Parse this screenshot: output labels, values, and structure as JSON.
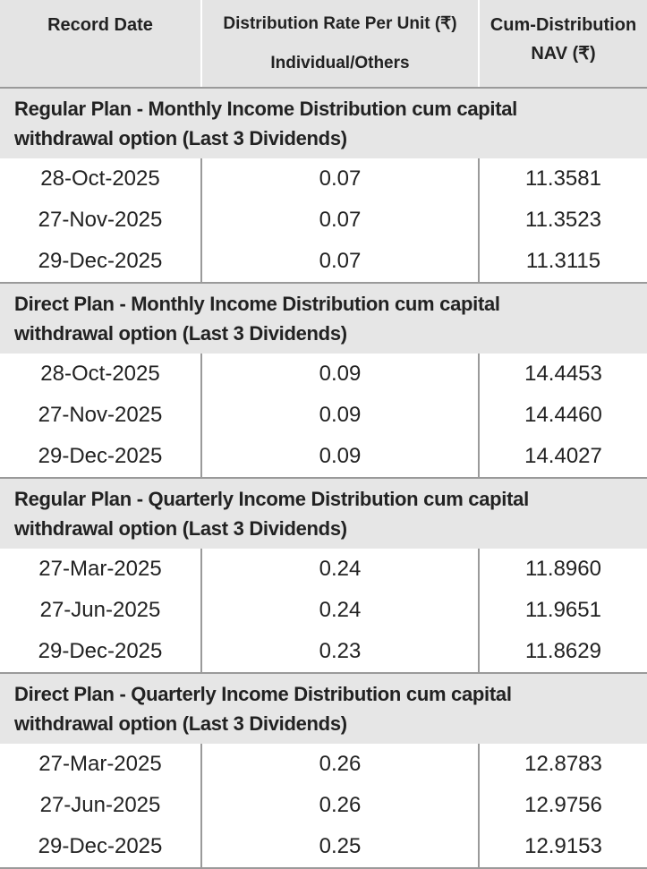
{
  "table": {
    "header": {
      "record_date": "Record Date",
      "rate": [
        "Distribution Rate Per Unit (₹)",
        "Individual/Others"
      ],
      "nav": [
        "Cum-Distribution",
        "NAV (₹)"
      ]
    },
    "sections": [
      {
        "title": [
          "Regular Plan - Monthly Income Distribution cum capital",
          "withdrawal option (Last 3 Dividends)"
        ],
        "rows": [
          [
            "28-Oct-2025",
            "0.07",
            "11.3581"
          ],
          [
            "27-Nov-2025",
            "0.07",
            "11.3523"
          ],
          [
            "29-Dec-2025",
            "0.07",
            "11.3115"
          ]
        ]
      },
      {
        "title": [
          "Direct Plan - Monthly Income Distribution cum capital",
          "withdrawal option (Last 3 Dividends)"
        ],
        "rows": [
          [
            "28-Oct-2025",
            "0.09",
            "14.4453"
          ],
          [
            "27-Nov-2025",
            "0.09",
            "14.4460"
          ],
          [
            "29-Dec-2025",
            "0.09",
            "14.4027"
          ]
        ]
      },
      {
        "title": [
          "Regular Plan - Quarterly Income Distribution cum capital",
          "withdrawal option (Last 3 Dividends)"
        ],
        "rows": [
          [
            "27-Mar-2025",
            "0.24",
            "11.8960"
          ],
          [
            "27-Jun-2025",
            "0.24",
            "11.9651"
          ],
          [
            "29-Dec-2025",
            "0.23",
            "11.8629"
          ]
        ]
      },
      {
        "title": [
          "Direct Plan - Quarterly Income Distribution cum capital",
          "withdrawal option (Last 3 Dividends)"
        ],
        "rows": [
          [
            "27-Mar-2025",
            "0.26",
            "12.8783"
          ],
          [
            "27-Jun-2025",
            "0.26",
            "12.9756"
          ],
          [
            "29-Dec-2025",
            "0.25",
            "12.9153"
          ]
        ]
      }
    ]
  }
}
